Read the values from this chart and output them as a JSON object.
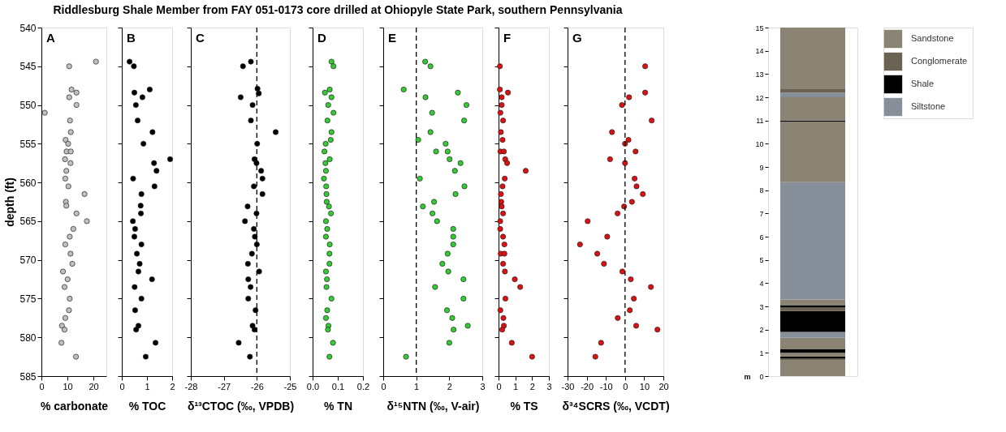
{
  "chart_data": [
    {
      "type": "scatter",
      "title": "Riddlesburg Shale Member from FAY 051-0173 core drilled at Ohiopyle State Park, southern Pennsylvania",
      "annotations": [
        "A"
      ],
      "xlabel": "% carbonate",
      "ylabel": "depth (ft)",
      "color": "#c0c0c0",
      "marker": "circle",
      "x": [
        21.0,
        10.7,
        11.6,
        13.5,
        10.7,
        13.5,
        1.3,
        11.0,
        11.3,
        9.3,
        10.3,
        9.7,
        11.3,
        9.1,
        11.2,
        9.6,
        9.2,
        10.4,
        16.6,
        9.4,
        9.6,
        13.5,
        17.5,
        12.3,
        10.9,
        9.2,
        11.2,
        11.9,
        8.3,
        10.1,
        8.9,
        10.9,
        10.6,
        9.2,
        7.9,
        8.9,
        7.7,
        13.3
      ],
      "values": [
        544.4,
        545,
        548,
        548.4,
        549,
        550,
        551,
        552,
        553.5,
        554.5,
        555,
        556,
        556,
        557,
        557.5,
        558.5,
        559.5,
        560.5,
        561.5,
        562.5,
        563,
        564,
        565,
        566,
        567,
        568,
        569.2,
        570.5,
        571.5,
        572.5,
        573.5,
        575,
        576.5,
        577.5,
        578.5,
        579,
        580.7,
        582.5
      ],
      "xlim": [
        0,
        25
      ],
      "xticks": [
        0,
        10,
        20
      ],
      "ylim": [
        585,
        540
      ],
      "yticks": [
        540,
        545,
        550,
        555,
        560,
        565,
        570,
        575,
        580,
        585
      ]
    },
    {
      "type": "scatter",
      "annotations": [
        "B"
      ],
      "xlabel": "% TOC",
      "color": "#000000",
      "marker": "circle",
      "tick_labels": "x",
      "x": [
        0.31,
        0.48,
        1.11,
        0.5,
        0.82,
        0.56,
        0.63,
        1.22,
        0.86,
        1.92,
        1.28,
        1.38,
        0.45,
        1.3,
        0.78,
        0.75,
        0.76,
        0.44,
        0.53,
        0.5,
        0.78,
        0.6,
        0.71,
        0.66,
        1.2,
        0.51,
        0.78,
        0.53,
        0.66,
        0.57,
        1.34,
        0.95
      ],
      "values": [
        544.4,
        545,
        548,
        548.4,
        549,
        550,
        552,
        553.5,
        555,
        557,
        557.5,
        558.5,
        559.5,
        560.5,
        561.5,
        563,
        564,
        565,
        566,
        567,
        568,
        569.2,
        570.5,
        571.5,
        572.5,
        573.5,
        575,
        576.5,
        578.5,
        579,
        580.7,
        582.5
      ],
      "xlim": [
        0,
        2
      ],
      "xticks": [
        0,
        1,
        2
      ],
      "ylim": [
        585,
        540
      ],
      "yticks": [
        540,
        545,
        550,
        555,
        560,
        565,
        570,
        575,
        580,
        585
      ]
    },
    {
      "type": "scatter",
      "annotations": [
        "C"
      ],
      "xlabel": "δ¹³CTOC (‰, VPDB)",
      "color": "#000000",
      "marker": "circle",
      "tick_labels": "x",
      "x": [
        -26.18,
        -26.42,
        -25.98,
        -25.94,
        -26.49,
        -26.13,
        -26.18,
        -25.43,
        -25.99,
        -26.07,
        -26.01,
        -25.87,
        -25.83,
        -26.09,
        -25.83,
        -26.28,
        -26.01,
        -26.36,
        -26.09,
        -26.06,
        -26.0,
        -26.15,
        -26.27,
        -25.93,
        -26.26,
        -26.19,
        -26.26,
        -26.04,
        -26.13,
        -26.07,
        -26.55,
        -26.21
      ],
      "values": [
        544.4,
        545,
        547.9,
        548.5,
        549,
        550,
        552,
        553.5,
        555,
        557,
        557.5,
        558.5,
        559.5,
        560.5,
        561.5,
        563.1,
        564,
        565,
        566,
        567,
        568,
        569.2,
        570.5,
        571.5,
        572.5,
        573.5,
        575,
        576.5,
        578.5,
        579,
        580.7,
        582.5
      ],
      "xlim": [
        -28,
        -25
      ],
      "xticks": [
        -28,
        -27,
        -26,
        -25
      ],
      "ylim": [
        585,
        540
      ],
      "yticks": [
        540,
        545,
        550,
        555,
        560,
        565,
        570,
        575,
        580,
        585
      ],
      "ref_lines": [
        {
          "axis": "x",
          "value": -26,
          "line_style": "dashed"
        }
      ]
    },
    {
      "type": "scatter",
      "annotations": [
        "D"
      ],
      "xlabel": "% TN",
      "color": "#33cc33",
      "marker": "circle",
      "tick_labels": "x",
      "x": [
        0.075,
        0.083,
        0.068,
        0.049,
        0.075,
        0.062,
        0.083,
        0.059,
        0.075,
        0.072,
        0.052,
        0.047,
        0.068,
        0.051,
        0.053,
        0.045,
        0.054,
        0.055,
        0.056,
        0.065,
        0.073,
        0.053,
        0.058,
        0.053,
        0.068,
        0.067,
        0.067,
        0.053,
        0.057,
        0.055,
        0.075,
        0.058,
        0.053,
        0.063,
        0.061,
        0.081,
        0.067
      ],
      "values": [
        544.4,
        545,
        548,
        548.4,
        549,
        550,
        551,
        552,
        553.5,
        554.5,
        555,
        556,
        557,
        557.5,
        558.5,
        559.5,
        560.5,
        561.5,
        562.5,
        563.1,
        564,
        565,
        566,
        567,
        568,
        569.2,
        570.5,
        571.5,
        572.5,
        573.5,
        575,
        576.5,
        577.5,
        578.5,
        579,
        580.7,
        582.5
      ],
      "xlim": [
        0,
        0.2
      ],
      "xticks": [
        {
          "value": 0,
          "label": "0.0"
        },
        0.1,
        0.2
      ],
      "ylim": [
        585,
        540
      ],
      "yticks": [
        540,
        545,
        550,
        555,
        560,
        565,
        570,
        575,
        580,
        585
      ]
    },
    {
      "type": "scatter",
      "annotations": [
        "E"
      ],
      "xlabel": "δ¹⁵NTN (‰, V-air)",
      "color": "#33cc33",
      "marker": "circle",
      "tick_labels": "x",
      "x": [
        1.27,
        1.43,
        0.62,
        2.26,
        1.28,
        2.52,
        1.48,
        2.45,
        1.43,
        1.06,
        1.89,
        1.6,
        1.95,
        2.01,
        2.34,
        2.17,
        1.11,
        2.46,
        2.19,
        1.54,
        1.2,
        1.49,
        1.63,
        2.12,
        2.12,
        2.12,
        1.95,
        1.79,
        1.97,
        2.43,
        1.57,
        2.43,
        1.93,
        2.09,
        2.56,
        2.13,
        2.0,
        0.69
      ],
      "values": [
        544.4,
        545,
        548,
        548.4,
        549,
        550,
        551,
        552,
        553.5,
        554.5,
        555,
        556,
        556,
        557,
        557.5,
        558.5,
        559.5,
        560.5,
        561.5,
        562.5,
        563.1,
        564,
        565,
        566,
        567,
        568,
        569.2,
        570.5,
        571.5,
        572.5,
        573.5,
        575,
        576.5,
        577.5,
        578.5,
        579,
        580.7,
        582.5
      ],
      "xlim": [
        0,
        3
      ],
      "xticks": [
        0,
        1,
        2,
        3
      ],
      "ylim": [
        585,
        540
      ],
      "yticks": [
        540,
        545,
        550,
        555,
        560,
        565,
        570,
        575,
        580,
        585
      ],
      "ref_lines": [
        {
          "axis": "x",
          "value": 1,
          "line_style": "dashed"
        }
      ]
    },
    {
      "type": "scatter",
      "annotations": [
        "F"
      ],
      "xlabel": "% TS",
      "color": "#dd1111",
      "marker": "circle",
      "tick_labels": "x",
      "x": [
        0.08,
        0.08,
        0.56,
        0.19,
        0.19,
        0.11,
        0.27,
        0.14,
        0.24,
        0.11,
        0.32,
        0.4,
        0.51,
        1.62,
        0.37,
        0.24,
        0.14,
        0.16,
        0.19,
        0.27,
        0.1,
        0.1,
        0.27,
        0.35,
        0.13,
        0.35,
        0.27,
        0.38,
        0.97,
        1.29,
        0.41,
        0.11,
        0.29,
        0.32,
        0.22,
        0.79,
        2.0
      ],
      "values": [
        545,
        548,
        548.4,
        549,
        550,
        551,
        552,
        553.5,
        554.5,
        556,
        556,
        557,
        557.5,
        558.5,
        559.5,
        560.5,
        561.5,
        562.5,
        563.1,
        564,
        565,
        566,
        567,
        568,
        569.2,
        569.2,
        570.5,
        571.5,
        572.5,
        573.5,
        575,
        576.5,
        577.5,
        578.5,
        579,
        580.7,
        582.5
      ],
      "xlim": [
        0,
        3
      ],
      "xticks": [
        0,
        1,
        2,
        3
      ],
      "ylim": [
        585,
        540
      ],
      "yticks": [
        540,
        545,
        550,
        555,
        560,
        565,
        570,
        575,
        580,
        585
      ]
    },
    {
      "type": "scatter",
      "annotations": [
        "G"
      ],
      "xlabel": "δ³⁴SCRS (‰, VCDT)",
      "color": "#dd1111",
      "marker": "circle",
      "tick_labels": "x",
      "x": [
        10.5,
        10.5,
        2.1,
        -1.6,
        13.9,
        -6.8,
        1.8,
        0.0,
        5.5,
        -7.8,
        0.0,
        5.0,
        6.0,
        9.3,
        3.6,
        -0.5,
        -3.9,
        -19.5,
        -9.3,
        -23.5,
        -14.5,
        -11.0,
        -1.4,
        3.0,
        13.5,
        4.6,
        2.5,
        -3.8,
        5.8,
        16.9,
        -12.5,
        -15.5
      ],
      "values": [
        545,
        548.4,
        549,
        550,
        552,
        553.5,
        554.5,
        555,
        556,
        557,
        557.5,
        559.5,
        560.5,
        561.5,
        562.5,
        563.1,
        564,
        565,
        567,
        568,
        569.2,
        570.5,
        571.5,
        572.5,
        573.5,
        575,
        576.5,
        577.5,
        578.5,
        579,
        580.7,
        582.5
      ],
      "xlim": [
        -30,
        20
      ],
      "xticks": [
        -30,
        -20,
        -10,
        0,
        10,
        20
      ],
      "ylim": [
        585,
        540
      ],
      "yticks": [
        540,
        545,
        550,
        555,
        560,
        565,
        570,
        575,
        580,
        585
      ],
      "ref_lines": [
        {
          "axis": "x",
          "value": 0,
          "line_style": "dashed"
        }
      ]
    },
    {
      "type": "bar",
      "stacked": true,
      "categories": [
        null
      ],
      "ylabel": "m",
      "legend": "top right",
      "tick_labels": "y",
      "ylim": [
        0,
        15
      ],
      "yticks": [
        0,
        1,
        2,
        3,
        4,
        5,
        6,
        7,
        8,
        9,
        10,
        11,
        12,
        13,
        14,
        15
      ],
      "series": [
        {
          "name": "Sandstone",
          "color": "#8b8373",
          "values": [
            0.7
          ]
        },
        {
          "name": "Conglomerate",
          "color": "#6b6252",
          "values": [
            0.05
          ]
        },
        {
          "name": "Shale",
          "color": "#000000",
          "values": [
            0.1
          ]
        },
        {
          "color": "#8b8373",
          "values": [
            0.15
          ]
        },
        {
          "color": "#000000",
          "values": [
            0.15
          ]
        },
        {
          "color": "#8b8373",
          "values": [
            0.5
          ]
        },
        {
          "name": "Siltstone",
          "color": "#87909a",
          "values": [
            0.25
          ]
        },
        {
          "color": "#000000",
          "values": [
            0.9
          ]
        },
        {
          "color": "#6b6252",
          "values": [
            0.15
          ]
        },
        {
          "color": "#000000",
          "values": [
            0.1
          ]
        },
        {
          "color": "#8b8373",
          "values": [
            0.25
          ]
        },
        {
          "color": "#87909a",
          "values": [
            5.05
          ]
        },
        {
          "color": "#8b8373",
          "values": [
            2.6
          ]
        },
        {
          "color": "#000000",
          "values": [
            0.05
          ]
        },
        {
          "color": "#8b8373",
          "values": [
            1.0
          ]
        },
        {
          "color": "#87909a",
          "values": [
            0.2
          ]
        },
        {
          "color": "#6b6252",
          "values": [
            0.15
          ]
        },
        {
          "color": "#8b8373",
          "values": [
            2.65
          ]
        }
      ]
    }
  ]
}
